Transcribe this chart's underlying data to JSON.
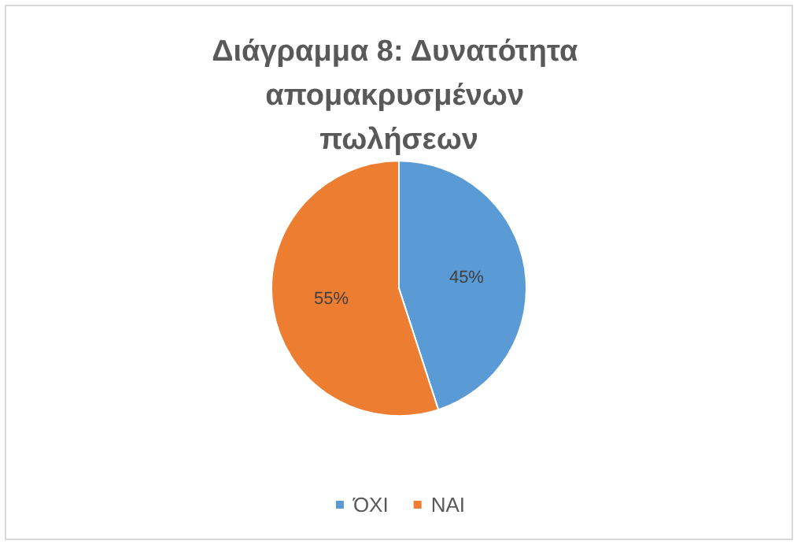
{
  "chart_data": {
    "type": "pie",
    "title": "Διάγραμμα 8: Δυνατότητα απομακρυσμένων πωλήσεων",
    "categories": [
      "ΌΧΙ",
      "ΝΑΙ"
    ],
    "values": [
      45,
      55
    ],
    "colors": [
      "#5b9bd5",
      "#ed7d31"
    ],
    "value_labels": [
      "45%",
      "55%"
    ],
    "legend": "bottom"
  }
}
